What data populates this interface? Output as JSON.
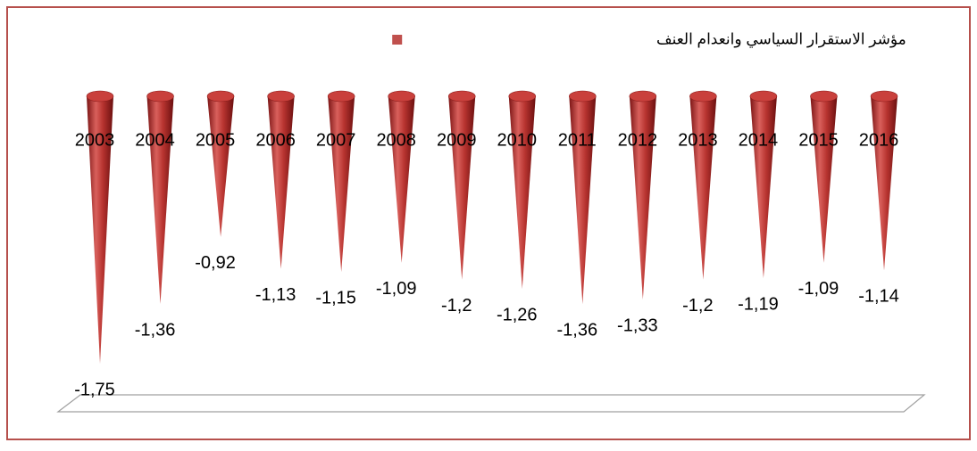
{
  "chart_data": {
    "type": "cone",
    "legend": "مؤشر الاستقرار السياسي وانعدام العنف",
    "color": "#c0504d",
    "categories": [
      "2003",
      "2004",
      "2005",
      "2006",
      "2007",
      "2008",
      "2009",
      "2010",
      "2011",
      "2012",
      "2013",
      "2014",
      "2015",
      "2016"
    ],
    "values": [
      -1.75,
      -1.36,
      -0.92,
      -1.13,
      -1.15,
      -1.09,
      -1.2,
      -1.26,
      -1.36,
      -1.33,
      -1.2,
      -1.19,
      -1.09,
      -1.14
    ],
    "value_labels": [
      "-1,75",
      "-1,36",
      "-0,92",
      "-1,13",
      "-1,15",
      "-1,09",
      "-1,2",
      "-1,26",
      "-1,36",
      "-1,33",
      "-1,2",
      "-1,19",
      "-1,09",
      "-1,14"
    ]
  }
}
